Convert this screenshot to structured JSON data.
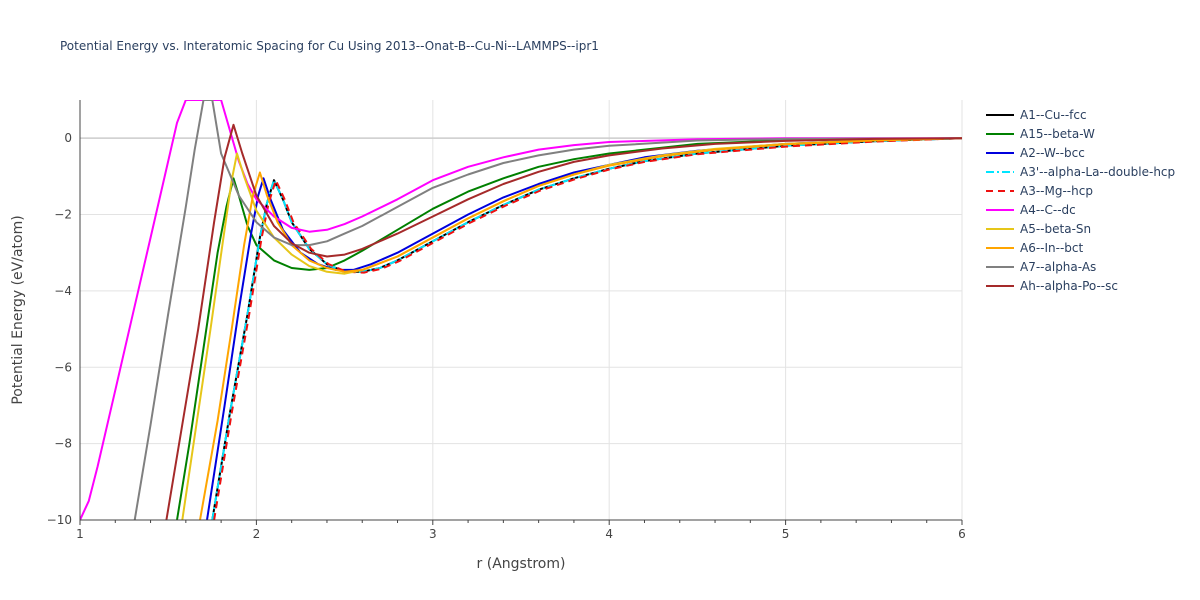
{
  "chart_data": {
    "type": "line",
    "title": "Potential Energy vs. Interatomic Spacing for Cu Using 2013--Onat-B--Cu-Ni--LAMMPS--ipr1",
    "xlabel": "r (Angstrom)",
    "ylabel": "Potential Energy (eV/atom)",
    "xlim": [
      1,
      6
    ],
    "ylim": [
      -10,
      1
    ],
    "xticks": [
      1,
      2,
      3,
      4,
      5,
      6
    ],
    "yticks": [
      -10,
      -8,
      -6,
      -4,
      -2,
      0
    ],
    "xtick_labels": [
      "1",
      "2",
      "3",
      "4",
      "5",
      "6"
    ],
    "ytick_labels": [
      "−10",
      "−8",
      "−6",
      "−4",
      "−2",
      "0"
    ],
    "grid": true,
    "legend_position": "right",
    "series": [
      {
        "name": "A1--Cu--fcc",
        "color": "#000000",
        "dash": "solid",
        "points": [
          [
            1.75,
            -10
          ],
          [
            1.85,
            -7.2
          ],
          [
            1.95,
            -4.6
          ],
          [
            2.02,
            -2.6
          ],
          [
            2.06,
            -1.7
          ],
          [
            2.1,
            -1.1
          ],
          [
            2.15,
            -1.6
          ],
          [
            2.2,
            -2.2
          ],
          [
            2.3,
            -2.9
          ],
          [
            2.4,
            -3.3
          ],
          [
            2.5,
            -3.5
          ],
          [
            2.6,
            -3.5
          ],
          [
            2.7,
            -3.4
          ],
          [
            2.8,
            -3.2
          ],
          [
            3.0,
            -2.7
          ],
          [
            3.2,
            -2.2
          ],
          [
            3.4,
            -1.75
          ],
          [
            3.6,
            -1.35
          ],
          [
            3.8,
            -1.05
          ],
          [
            4.0,
            -0.8
          ],
          [
            4.2,
            -0.6
          ],
          [
            4.5,
            -0.4
          ],
          [
            5.0,
            -0.2
          ],
          [
            5.5,
            -0.08
          ],
          [
            6.0,
            0
          ]
        ]
      },
      {
        "name": "A15--beta-W",
        "color": "#008000",
        "dash": "solid",
        "points": [
          [
            1.55,
            -10
          ],
          [
            1.62,
            -8.0
          ],
          [
            1.7,
            -5.5
          ],
          [
            1.78,
            -3.0
          ],
          [
            1.83,
            -1.8
          ],
          [
            1.87,
            -1.05
          ],
          [
            1.9,
            -1.5
          ],
          [
            1.95,
            -2.3
          ],
          [
            2.0,
            -2.8
          ],
          [
            2.1,
            -3.2
          ],
          [
            2.2,
            -3.4
          ],
          [
            2.3,
            -3.45
          ],
          [
            2.4,
            -3.4
          ],
          [
            2.5,
            -3.2
          ],
          [
            2.6,
            -2.95
          ],
          [
            2.8,
            -2.4
          ],
          [
            3.0,
            -1.85
          ],
          [
            3.2,
            -1.4
          ],
          [
            3.4,
            -1.05
          ],
          [
            3.6,
            -0.75
          ],
          [
            3.8,
            -0.55
          ],
          [
            4.0,
            -0.4
          ],
          [
            4.5,
            -0.15
          ],
          [
            5.0,
            -0.05
          ],
          [
            6.0,
            0
          ]
        ]
      },
      {
        "name": "A2--W--bcc",
        "color": "#0000dd",
        "dash": "solid",
        "points": [
          [
            1.72,
            -10
          ],
          [
            1.82,
            -7.0
          ],
          [
            1.9,
            -4.5
          ],
          [
            1.97,
            -2.5
          ],
          [
            2.01,
            -1.5
          ],
          [
            2.04,
            -1.05
          ],
          [
            2.08,
            -1.6
          ],
          [
            2.15,
            -2.4
          ],
          [
            2.25,
            -3.0
          ],
          [
            2.35,
            -3.3
          ],
          [
            2.45,
            -3.45
          ],
          [
            2.55,
            -3.45
          ],
          [
            2.65,
            -3.3
          ],
          [
            2.8,
            -3.0
          ],
          [
            3.0,
            -2.5
          ],
          [
            3.2,
            -2.0
          ],
          [
            3.4,
            -1.55
          ],
          [
            3.6,
            -1.2
          ],
          [
            3.8,
            -0.9
          ],
          [
            4.0,
            -0.7
          ],
          [
            4.2,
            -0.5
          ],
          [
            4.5,
            -0.33
          ],
          [
            5.0,
            -0.15
          ],
          [
            5.5,
            -0.05
          ],
          [
            6.0,
            0
          ]
        ]
      },
      {
        "name": "A3'--alpha-La--double-hcp",
        "color": "#00e5ff",
        "dash": "dashdot",
        "points": [
          [
            1.75,
            -10
          ],
          [
            1.85,
            -7.2
          ],
          [
            1.95,
            -4.6
          ],
          [
            2.02,
            -2.6
          ],
          [
            2.06,
            -1.7
          ],
          [
            2.1,
            -1.1
          ],
          [
            2.15,
            -1.6
          ],
          [
            2.2,
            -2.2
          ],
          [
            2.3,
            -2.9
          ],
          [
            2.4,
            -3.3
          ],
          [
            2.5,
            -3.5
          ],
          [
            2.6,
            -3.5
          ],
          [
            2.7,
            -3.4
          ],
          [
            2.8,
            -3.2
          ],
          [
            3.0,
            -2.7
          ],
          [
            3.2,
            -2.2
          ],
          [
            3.4,
            -1.75
          ],
          [
            3.6,
            -1.35
          ],
          [
            3.8,
            -1.05
          ],
          [
            4.0,
            -0.8
          ],
          [
            4.2,
            -0.6
          ],
          [
            4.5,
            -0.4
          ],
          [
            5.0,
            -0.2
          ],
          [
            5.5,
            -0.08
          ],
          [
            6.0,
            0
          ]
        ]
      },
      {
        "name": "A3--Mg--hcp",
        "color": "#ee1111",
        "dash": "dash",
        "points": [
          [
            1.76,
            -10
          ],
          [
            1.86,
            -7.2
          ],
          [
            1.96,
            -4.6
          ],
          [
            2.03,
            -2.6
          ],
          [
            2.07,
            -1.7
          ],
          [
            2.11,
            -1.1
          ],
          [
            2.16,
            -1.6
          ],
          [
            2.21,
            -2.2
          ],
          [
            2.31,
            -2.9
          ],
          [
            2.41,
            -3.3
          ],
          [
            2.51,
            -3.5
          ],
          [
            2.61,
            -3.52
          ],
          [
            2.71,
            -3.42
          ],
          [
            2.81,
            -3.22
          ],
          [
            3.01,
            -2.72
          ],
          [
            3.21,
            -2.22
          ],
          [
            3.41,
            -1.77
          ],
          [
            3.61,
            -1.37
          ],
          [
            3.81,
            -1.07
          ],
          [
            4.0,
            -0.82
          ],
          [
            4.2,
            -0.62
          ],
          [
            4.5,
            -0.42
          ],
          [
            5.0,
            -0.22
          ],
          [
            5.5,
            -0.09
          ],
          [
            6.0,
            0
          ]
        ]
      },
      {
        "name": "A4--C--dc",
        "color": "#ff00ff",
        "dash": "solid",
        "points": [
          [
            1.0,
            -10
          ],
          [
            1.05,
            -9.5
          ],
          [
            1.1,
            -8.6
          ],
          [
            1.2,
            -6.6
          ],
          [
            1.3,
            -4.6
          ],
          [
            1.4,
            -2.6
          ],
          [
            1.5,
            -0.6
          ],
          [
            1.55,
            0.4
          ],
          [
            1.6,
            1.0
          ],
          [
            1.8,
            1.0
          ],
          [
            1.9,
            -0.6
          ],
          [
            1.95,
            -1.2
          ],
          [
            2.0,
            -1.6
          ],
          [
            2.1,
            -2.05
          ],
          [
            2.2,
            -2.35
          ],
          [
            2.3,
            -2.45
          ],
          [
            2.4,
            -2.4
          ],
          [
            2.5,
            -2.25
          ],
          [
            2.6,
            -2.05
          ],
          [
            2.8,
            -1.6
          ],
          [
            3.0,
            -1.1
          ],
          [
            3.2,
            -0.75
          ],
          [
            3.4,
            -0.5
          ],
          [
            3.6,
            -0.3
          ],
          [
            3.8,
            -0.18
          ],
          [
            4.0,
            -0.1
          ],
          [
            4.5,
            -0.03
          ],
          [
            5.0,
            0
          ],
          [
            6.0,
            0
          ]
        ]
      },
      {
        "name": "A5--beta-Sn",
        "color": "#e6c619",
        "dash": "solid",
        "points": [
          [
            1.58,
            -10
          ],
          [
            1.66,
            -7.5
          ],
          [
            1.74,
            -5.0
          ],
          [
            1.81,
            -2.7
          ],
          [
            1.86,
            -1.1
          ],
          [
            1.89,
            -0.4
          ],
          [
            1.93,
            -1.0
          ],
          [
            2.0,
            -1.9
          ],
          [
            2.1,
            -2.6
          ],
          [
            2.2,
            -3.05
          ],
          [
            2.3,
            -3.35
          ],
          [
            2.4,
            -3.5
          ],
          [
            2.5,
            -3.55
          ],
          [
            2.6,
            -3.45
          ],
          [
            2.8,
            -3.1
          ],
          [
            3.0,
            -2.6
          ],
          [
            3.2,
            -2.1
          ],
          [
            3.4,
            -1.65
          ],
          [
            3.6,
            -1.25
          ],
          [
            3.8,
            -0.95
          ],
          [
            4.0,
            -0.7
          ],
          [
            4.3,
            -0.45
          ],
          [
            4.6,
            -0.28
          ],
          [
            5.0,
            -0.15
          ],
          [
            5.5,
            -0.05
          ],
          [
            6.0,
            0
          ]
        ]
      },
      {
        "name": "A6--In--bct",
        "color": "#ffa500",
        "dash": "solid",
        "points": [
          [
            1.68,
            -10
          ],
          [
            1.78,
            -7.4
          ],
          [
            1.86,
            -5.0
          ],
          [
            1.93,
            -2.8
          ],
          [
            1.98,
            -1.5
          ],
          [
            2.02,
            -0.9
          ],
          [
            2.06,
            -1.5
          ],
          [
            2.12,
            -2.2
          ],
          [
            2.2,
            -2.8
          ],
          [
            2.3,
            -3.2
          ],
          [
            2.4,
            -3.4
          ],
          [
            2.5,
            -3.5
          ],
          [
            2.6,
            -3.45
          ],
          [
            2.8,
            -3.1
          ],
          [
            3.0,
            -2.6
          ],
          [
            3.2,
            -2.1
          ],
          [
            3.4,
            -1.65
          ],
          [
            3.6,
            -1.25
          ],
          [
            3.8,
            -0.95
          ],
          [
            4.0,
            -0.72
          ],
          [
            4.3,
            -0.47
          ],
          [
            4.6,
            -0.3
          ],
          [
            5.0,
            -0.16
          ],
          [
            5.5,
            -0.06
          ],
          [
            6.0,
            0
          ]
        ]
      },
      {
        "name": "A7--alpha-As",
        "color": "#808080",
        "dash": "solid",
        "points": [
          [
            1.31,
            -10
          ],
          [
            1.4,
            -7.5
          ],
          [
            1.5,
            -4.6
          ],
          [
            1.6,
            -1.8
          ],
          [
            1.65,
            -0.3
          ],
          [
            1.7,
            1.0
          ],
          [
            1.75,
            1.0
          ],
          [
            1.8,
            -0.4
          ],
          [
            1.9,
            -1.5
          ],
          [
            2.0,
            -2.2
          ],
          [
            2.1,
            -2.6
          ],
          [
            2.2,
            -2.8
          ],
          [
            2.3,
            -2.8
          ],
          [
            2.4,
            -2.7
          ],
          [
            2.5,
            -2.5
          ],
          [
            2.6,
            -2.3
          ],
          [
            2.8,
            -1.8
          ],
          [
            3.0,
            -1.3
          ],
          [
            3.2,
            -0.95
          ],
          [
            3.4,
            -0.65
          ],
          [
            3.6,
            -0.45
          ],
          [
            3.8,
            -0.3
          ],
          [
            4.0,
            -0.2
          ],
          [
            4.5,
            -0.06
          ],
          [
            5.0,
            -0.02
          ],
          [
            6.0,
            0
          ]
        ]
      },
      {
        "name": "Ah--alpha-Po--sc",
        "color": "#a52a2a",
        "dash": "solid",
        "points": [
          [
            1.49,
            -10
          ],
          [
            1.58,
            -7.5
          ],
          [
            1.67,
            -5.0
          ],
          [
            1.76,
            -2.2
          ],
          [
            1.82,
            -0.5
          ],
          [
            1.87,
            0.35
          ],
          [
            1.92,
            -0.4
          ],
          [
            2.0,
            -1.5
          ],
          [
            2.1,
            -2.3
          ],
          [
            2.2,
            -2.75
          ],
          [
            2.3,
            -3.0
          ],
          [
            2.4,
            -3.1
          ],
          [
            2.5,
            -3.05
          ],
          [
            2.6,
            -2.9
          ],
          [
            2.8,
            -2.5
          ],
          [
            3.0,
            -2.05
          ],
          [
            3.2,
            -1.6
          ],
          [
            3.4,
            -1.2
          ],
          [
            3.6,
            -0.88
          ],
          [
            3.8,
            -0.62
          ],
          [
            4.0,
            -0.45
          ],
          [
            4.3,
            -0.27
          ],
          [
            4.6,
            -0.15
          ],
          [
            5.0,
            -0.07
          ],
          [
            5.5,
            -0.02
          ],
          [
            6.0,
            0
          ]
        ]
      }
    ]
  }
}
